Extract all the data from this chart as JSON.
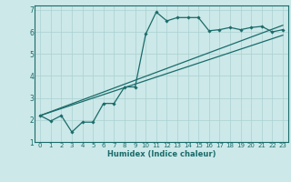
{
  "xlabel": "Humidex (Indice chaleur)",
  "bg_color": "#cce8e8",
  "grid_color": "#aad0d0",
  "line_color": "#1a6b6b",
  "xlim": [
    -0.5,
    23.5
  ],
  "ylim": [
    1,
    7.2
  ],
  "xticks": [
    0,
    1,
    2,
    3,
    4,
    5,
    6,
    7,
    8,
    9,
    10,
    11,
    12,
    13,
    14,
    15,
    16,
    17,
    18,
    19,
    20,
    21,
    22,
    23
  ],
  "yticks": [
    1,
    2,
    3,
    4,
    5,
    6,
    7
  ],
  "line1_x": [
    0,
    1,
    2,
    3,
    4,
    5,
    6,
    7,
    8,
    9,
    10,
    11,
    12,
    13,
    14,
    15,
    16,
    17,
    18,
    19,
    20,
    21,
    22,
    23
  ],
  "line1_y": [
    2.2,
    1.95,
    2.2,
    1.45,
    1.9,
    1.9,
    2.75,
    2.75,
    3.5,
    3.5,
    5.9,
    6.9,
    6.5,
    6.65,
    6.65,
    6.65,
    6.05,
    6.1,
    6.2,
    6.1,
    6.2,
    6.25,
    6.0,
    6.1
  ],
  "line2_x": [
    0,
    23
  ],
  "line2_y": [
    2.2,
    6.3
  ],
  "line3_x": [
    0,
    23
  ],
  "line3_y": [
    2.2,
    5.85
  ]
}
